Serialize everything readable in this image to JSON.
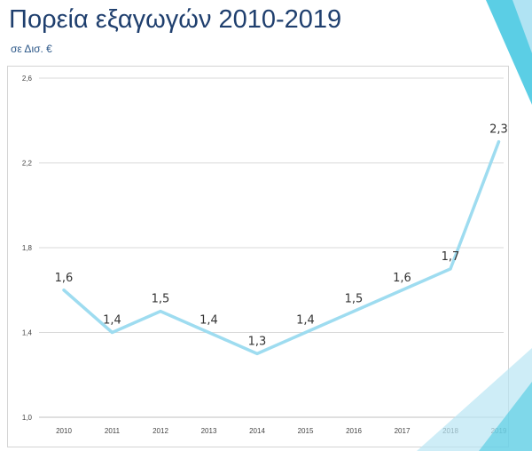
{
  "header": {
    "title": "Πορεία εξαγωγών 2010-2019",
    "subtitle": "σε Δισ. €"
  },
  "colors": {
    "line": "#9edcf0",
    "title": "#1f3f6e",
    "grid": "#d9d9d9",
    "accent_teal": "#3ec6e0",
    "accent_light": "#b9e6f4"
  },
  "chart_data": {
    "type": "line",
    "x": [
      "2010",
      "2011",
      "2012",
      "2013",
      "2014",
      "2015",
      "2016",
      "2017",
      "2018",
      "2019"
    ],
    "series": [
      {
        "values": [
          1.6,
          1.4,
          1.5,
          1.4,
          1.3,
          1.4,
          1.5,
          1.6,
          1.7,
          2.3
        ]
      }
    ],
    "data_labels": [
      "1,6",
      "1,4",
      "1,5",
      "1,4",
      "1,3",
      "1,4",
      "1,5",
      "1,6",
      "1,7",
      "2,3"
    ],
    "ylim": [
      1.0,
      2.6
    ],
    "yticks": [
      1.0,
      1.4,
      1.8,
      2.2,
      2.6
    ],
    "ytick_labels": [
      "1,0",
      "1,4",
      "1,8",
      "2,2",
      "2,6"
    ],
    "grid": true,
    "title": "",
    "xlabel": "",
    "ylabel": ""
  }
}
